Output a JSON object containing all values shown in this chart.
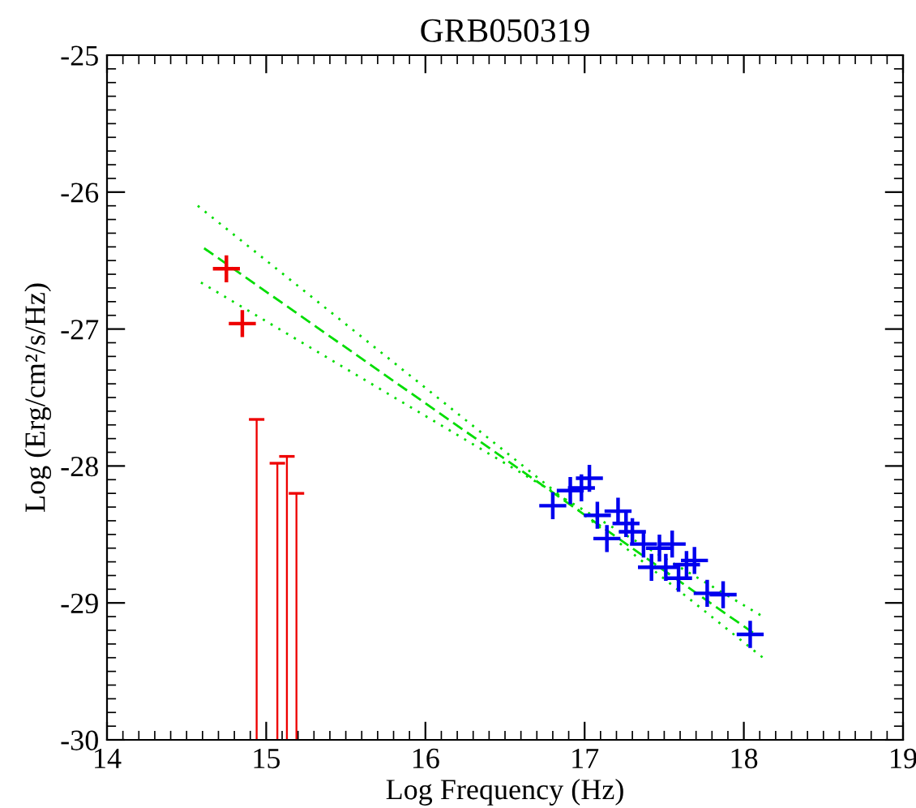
{
  "chart_data": {
    "type": "scatter",
    "title": "GRB050319",
    "xlabel": "Log Frequency (Hz)",
    "ylabel": "Log (Erg/cm²/s/Hz)",
    "xlim": [
      14,
      19
    ],
    "ylim": [
      -30,
      -25
    ],
    "xticks": [
      14,
      15,
      16,
      17,
      18,
      19
    ],
    "yticks": [
      -30,
      -29,
      -28,
      -27,
      -26,
      -25
    ],
    "grid": false,
    "legend": false,
    "series": [
      {
        "type": "line",
        "color": "#00dd00",
        "line_style": "dashed",
        "marker": "none",
        "x": [
          14.61,
          18.06
        ],
        "values": [
          -26.41,
          -29.22
        ]
      },
      {
        "type": "line",
        "color": "#00dd00",
        "line_style": "dotted",
        "marker": "none",
        "x": [
          14.57,
          18.12
        ],
        "values": [
          -26.1,
          -29.4
        ]
      },
      {
        "type": "line",
        "color": "#00dd00",
        "line_style": "dotted",
        "marker": "none",
        "x": [
          14.59,
          18.12
        ],
        "values": [
          -26.66,
          -29.1
        ]
      },
      {
        "type": "bar",
        "color": "#ee0000",
        "x": [
          14.94,
          15.07,
          15.13,
          15.19
        ],
        "base": [
          -30,
          -30,
          -30,
          -30
        ],
        "values": [
          2.34,
          2.02,
          2.07,
          1.8
        ]
      },
      {
        "color": "#ee0000",
        "marker": "cross",
        "x": [
          14.75,
          14.85
        ],
        "values": [
          -26.56,
          -26.96
        ]
      },
      {
        "color": "#0000ee",
        "marker": "cross",
        "x": [
          16.8,
          16.91,
          16.98,
          17.03,
          17.08,
          17.14,
          17.21,
          17.26,
          17.3,
          17.37,
          17.47,
          17.55,
          17.42,
          17.51,
          17.59,
          17.64,
          17.69,
          17.77,
          17.87,
          18.04
        ],
        "values": [
          -28.29,
          -28.18,
          -28.16,
          -28.09,
          -28.36,
          -28.53,
          -28.33,
          -28.42,
          -28.48,
          -28.57,
          -28.6,
          -28.57,
          -28.74,
          -28.74,
          -28.82,
          -28.72,
          -28.69,
          -28.93,
          -28.94,
          -29.23
        ]
      }
    ]
  }
}
